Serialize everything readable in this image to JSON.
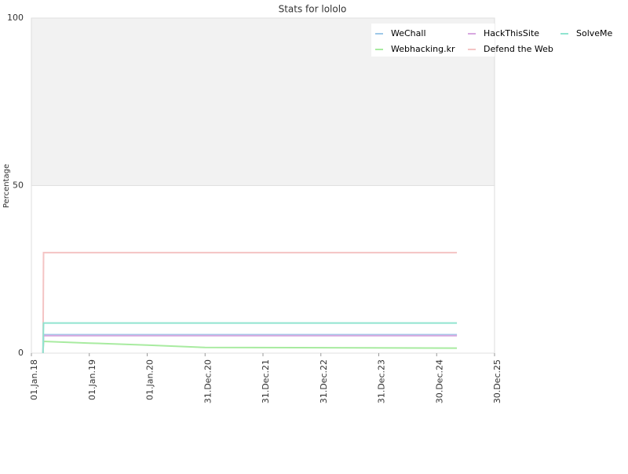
{
  "chart_data": {
    "type": "line",
    "title": "Stats for lololo",
    "y_label": "Percentage",
    "x": [
      2018.2,
      2018.21,
      2019,
      2020,
      2021,
      2025.35
    ],
    "series": [
      {
        "name": "WeChall",
        "color": "#9ec8e8",
        "values": [
          0,
          5.5,
          5.5,
          5.5,
          5.5,
          5.5
        ]
      },
      {
        "name": "Webhacking.kr",
        "color": "#a8eba0",
        "values": [
          0,
          3.5,
          3,
          2.4,
          1.7,
          1.5
        ]
      },
      {
        "name": "HackThisSite",
        "color": "#d8a8e0",
        "values": [
          0,
          5.2,
          5.2,
          5.2,
          5.2,
          5.2
        ]
      },
      {
        "name": "Defend the Web",
        "color": "#f4c4c4",
        "values": [
          0,
          30,
          30,
          30,
          30,
          30
        ]
      },
      {
        "name": "SolveMe",
        "color": "#90e4d0",
        "values": [
          0,
          9,
          9,
          9,
          9,
          9
        ]
      }
    ],
    "xlim": [
      2018,
      2026
    ],
    "xticks": [
      {
        "value": 2018,
        "label": "01.Jan.18"
      },
      {
        "value": 2019,
        "label": "01.Jan.19"
      },
      {
        "value": 2020,
        "label": "01.Jan.20"
      },
      {
        "value": 2021,
        "label": "31.Dec.20"
      },
      {
        "value": 2022,
        "label": "31.Dec.21"
      },
      {
        "value": 2023,
        "label": "31.Dec.22"
      },
      {
        "value": 2024,
        "label": "31.Dec.23"
      },
      {
        "value": 2025,
        "label": "30.Dec.24"
      },
      {
        "value": 2026,
        "label": "30.Dec.25"
      }
    ],
    "ylim": [
      0,
      100
    ],
    "yticks": [
      0,
      50,
      100
    ],
    "grid": true,
    "legend": "top-right"
  }
}
